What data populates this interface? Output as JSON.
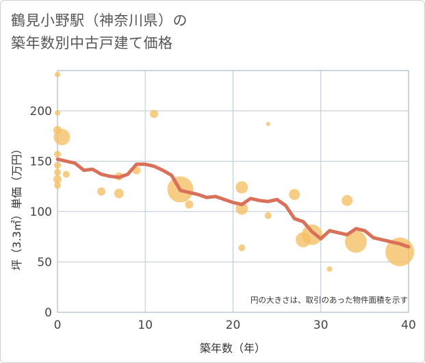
{
  "chart_data": {
    "type": "scatter",
    "title_line1": "鶴見小野駅（神奈川県）の",
    "title_line2": "築年数別中古戸建て価格",
    "xlabel": "築年数（年）",
    "ylabel": "坪（3.3㎡）単価（万円）",
    "note": "円の大きさは、取引のあった物件面積を示す",
    "xlim": [
      0,
      40
    ],
    "ylim": [
      0,
      240
    ],
    "xticks": [
      0,
      10,
      20,
      30,
      40
    ],
    "yticks": [
      0,
      50,
      100,
      150,
      200
    ],
    "colors": {
      "bubble": "#f5c066",
      "line": "#d9705a",
      "grid": "#b8c8d8"
    },
    "points": [
      {
        "x": 0,
        "y": 236,
        "s": 4
      },
      {
        "x": 0,
        "y": 198,
        "s": 4
      },
      {
        "x": 0,
        "y": 181,
        "s": 6
      },
      {
        "x": 0.5,
        "y": 174,
        "s": 12
      },
      {
        "x": 0,
        "y": 157,
        "s": 5
      },
      {
        "x": 0,
        "y": 146,
        "s": 5
      },
      {
        "x": 0,
        "y": 139,
        "s": 5
      },
      {
        "x": 0,
        "y": 132,
        "s": 6
      },
      {
        "x": 0,
        "y": 126,
        "s": 5
      },
      {
        "x": 1,
        "y": 137,
        "s": 5
      },
      {
        "x": 5,
        "y": 120,
        "s": 6
      },
      {
        "x": 7,
        "y": 135,
        "s": 6
      },
      {
        "x": 7,
        "y": 118,
        "s": 7
      },
      {
        "x": 9,
        "y": 141,
        "s": 6
      },
      {
        "x": 11,
        "y": 197,
        "s": 6
      },
      {
        "x": 14,
        "y": 122,
        "s": 19
      },
      {
        "x": 15,
        "y": 107,
        "s": 6
      },
      {
        "x": 21,
        "y": 124,
        "s": 9
      },
      {
        "x": 21,
        "y": 103,
        "s": 9
      },
      {
        "x": 21,
        "y": 64,
        "s": 5
      },
      {
        "x": 24,
        "y": 187,
        "s": 3
      },
      {
        "x": 24,
        "y": 96,
        "s": 5
      },
      {
        "x": 27,
        "y": 117,
        "s": 8
      },
      {
        "x": 28,
        "y": 72,
        "s": 11
      },
      {
        "x": 29,
        "y": 77,
        "s": 15
      },
      {
        "x": 31,
        "y": 43,
        "s": 4
      },
      {
        "x": 33,
        "y": 111,
        "s": 8
      },
      {
        "x": 34,
        "y": 70,
        "s": 16
      },
      {
        "x": 39,
        "y": 60,
        "s": 21
      }
    ],
    "trend": {
      "x": [
        0,
        1,
        2,
        3,
        4,
        5,
        6,
        7,
        8,
        9,
        10,
        11,
        12,
        13,
        14,
        15,
        16,
        17,
        18,
        19,
        20,
        21,
        22,
        23,
        24,
        25,
        26,
        27,
        28,
        29,
        30,
        31,
        32,
        33,
        34,
        35,
        36,
        37,
        38,
        39,
        40
      ],
      "y": [
        152,
        150,
        148,
        141,
        142,
        137,
        135,
        134,
        137,
        147,
        147,
        145,
        141,
        136,
        121,
        119,
        117,
        114,
        115,
        112,
        109,
        107,
        113,
        111,
        110,
        112,
        106,
        93,
        90,
        80,
        73,
        81,
        79,
        77,
        83,
        81,
        74,
        72,
        70,
        68,
        65
      ]
    }
  }
}
